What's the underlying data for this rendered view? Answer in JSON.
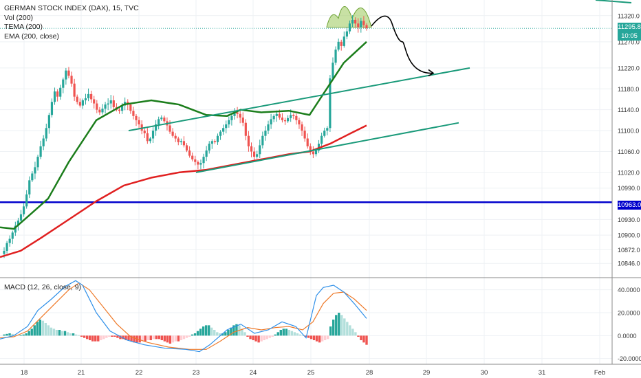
{
  "chart_data": {
    "type": "candlestick",
    "title": "GERMAN STOCK INDEX (DAX), 15, TVC",
    "indicators": [
      "Vol (200)",
      "TEMA (200)",
      "EMA (200, close)"
    ],
    "price_axis": {
      "ticks": [
        "11320.0",
        "11270.0",
        "11220.0",
        "11180.0",
        "11140.0",
        "11100.0",
        "11060.0",
        "11020.0",
        "10990.0",
        "10930.0",
        "10900.0",
        "10872.0",
        "10846.0"
      ],
      "range": [
        10820,
        11350
      ]
    },
    "current_price": "11295.8",
    "countdown": "10:05",
    "support_level": {
      "value": 10963.0,
      "label": "10963.0"
    },
    "x_axis_labels": [
      "18",
      "21",
      "22",
      "23",
      "24",
      "25",
      "28",
      "29",
      "30",
      "31",
      "Feb"
    ],
    "candles_close": [
      10870,
      10885,
      10893,
      10905,
      10918,
      10928,
      10940,
      10955,
      10978,
      11005,
      11018,
      11030,
      11050,
      11070,
      11085,
      11105,
      11130,
      11155,
      11175,
      11165,
      11182,
      11198,
      11215,
      11205,
      11190,
      11165,
      11155,
      11148,
      11158,
      11162,
      11170,
      11160,
      11152,
      11140,
      11135,
      11142,
      11150,
      11152,
      11158,
      11145,
      11140,
      11138,
      11148,
      11155,
      11150,
      11138,
      11128,
      11120,
      11112,
      11100,
      11095,
      11080,
      11085,
      11100,
      11112,
      11122,
      11125,
      11118,
      11110,
      11098,
      11090,
      11085,
      11078,
      11080,
      11072,
      11062,
      11052,
      11045,
      11040,
      11035,
      11038,
      11050,
      11062,
      11075,
      11080,
      11078,
      11090,
      11098,
      11105,
      11112,
      11120,
      11128,
      11135,
      11132,
      11125,
      11115,
      11090,
      11070,
      11060,
      11050,
      11055,
      11072,
      11090,
      11100,
      11112,
      11122,
      11128,
      11132,
      11125,
      11120,
      11118,
      11124,
      11130,
      11128,
      11120,
      11112,
      11100,
      11085,
      11070,
      11060,
      11055,
      11062,
      11075,
      11090,
      11100,
      11105,
      11200,
      11230,
      11255,
      11270,
      11262,
      11280,
      11290,
      11305,
      11312,
      11305,
      11298,
      11310,
      11302,
      11296
    ],
    "tema_200": [
      [
        0,
        10915
      ],
      [
        20,
        10912
      ],
      [
        40,
        10935
      ],
      [
        70,
        10970
      ],
      [
        100,
        11040
      ],
      [
        140,
        11120
      ],
      [
        180,
        11150
      ],
      [
        220,
        11158
      ],
      [
        260,
        11150
      ],
      [
        300,
        11130
      ],
      [
        330,
        11128
      ],
      [
        350,
        11140
      ],
      [
        380,
        11135
      ],
      [
        420,
        11138
      ],
      [
        450,
        11130
      ],
      [
        470,
        11170
      ],
      [
        500,
        11230
      ],
      [
        533,
        11270
      ]
    ],
    "ema_200": [
      [
        0,
        10858
      ],
      [
        30,
        10870
      ],
      [
        60,
        10895
      ],
      [
        100,
        10930
      ],
      [
        140,
        10965
      ],
      [
        180,
        10995
      ],
      [
        220,
        11010
      ],
      [
        260,
        11020
      ],
      [
        300,
        11025
      ],
      [
        340,
        11035
      ],
      [
        380,
        11045
      ],
      [
        420,
        11055
      ],
      [
        450,
        11060
      ],
      [
        480,
        11075
      ],
      [
        510,
        11095
      ],
      [
        533,
        11110
      ]
    ],
    "channel_upper": [
      [
        187,
        11100
      ],
      [
        683,
        11220
      ]
    ],
    "channel_lower": [
      [
        285,
        11020
      ],
      [
        667,
        11115
      ]
    ],
    "projection_path": [
      [
        540,
        11300
      ],
      [
        570,
        11305
      ],
      [
        585,
        11270
      ],
      [
        600,
        11220
      ],
      [
        630,
        11210
      ]
    ],
    "macd": {
      "label": "MACD (12, 26, close, 9)",
      "axis_ticks": [
        "40.0000",
        "20.0000",
        "0.0000",
        "-20.0000"
      ],
      "range": [
        -25,
        50
      ],
      "histogram": [
        1,
        1.5,
        2,
        1.5,
        1,
        0.5,
        0.5,
        1,
        2,
        4,
        6,
        9,
        12,
        14,
        13,
        11,
        9,
        7,
        6,
        5,
        5,
        4,
        4,
        3,
        2,
        2,
        1,
        0.5,
        -1,
        -2,
        -3,
        -4,
        -5,
        -5,
        -5,
        -4,
        -3,
        -2,
        -1,
        -1,
        -1,
        -2,
        -3,
        -3,
        -4,
        -4,
        -5,
        -6,
        -6,
        -6,
        -5,
        -5,
        -4,
        -4,
        -3,
        -3,
        -3,
        -4,
        -5,
        -6,
        -7,
        -6,
        -5,
        -5,
        -4,
        -3,
        -2,
        -1,
        1,
        2,
        4,
        6,
        8,
        9,
        9,
        7,
        5,
        3,
        2,
        2,
        3,
        5,
        7,
        9,
        10,
        9,
        6,
        3,
        -1,
        -3,
        -4,
        -5,
        -6,
        -5,
        -4,
        -3,
        -2,
        -1,
        1,
        3,
        5,
        6,
        6,
        5,
        4,
        3,
        2,
        1,
        0.5,
        -1,
        -2,
        -3,
        -4,
        -5,
        -6,
        -5,
        -4,
        -3,
        8,
        14,
        18,
        20,
        18,
        15,
        12,
        9,
        6,
        3,
        -1,
        -4,
        -6,
        -8
      ],
      "macd_line": [
        [
          0,
          -3
        ],
        [
          20,
          0
        ],
        [
          40,
          8
        ],
        [
          55,
          22
        ],
        [
          75,
          32
        ],
        [
          95,
          43
        ],
        [
          110,
          48
        ],
        [
          120,
          44
        ],
        [
          140,
          20
        ],
        [
          160,
          4
        ],
        [
          185,
          -4
        ],
        [
          210,
          -8
        ],
        [
          240,
          -11
        ],
        [
          270,
          -12
        ],
        [
          290,
          -14
        ],
        [
          305,
          -8
        ],
        [
          330,
          5
        ],
        [
          350,
          10
        ],
        [
          370,
          2
        ],
        [
          390,
          5
        ],
        [
          410,
          12
        ],
        [
          430,
          8
        ],
        [
          445,
          -2
        ],
        [
          460,
          35
        ],
        [
          470,
          42
        ],
        [
          485,
          44
        ],
        [
          500,
          38
        ],
        [
          515,
          28
        ],
        [
          533,
          15
        ]
      ],
      "signal_line": [
        [
          0,
          -2
        ],
        [
          20,
          -1
        ],
        [
          40,
          4
        ],
        [
          60,
          16
        ],
        [
          80,
          28
        ],
        [
          100,
          40
        ],
        [
          115,
          46
        ],
        [
          130,
          40
        ],
        [
          150,
          25
        ],
        [
          170,
          10
        ],
        [
          190,
          -1
        ],
        [
          215,
          -6
        ],
        [
          245,
          -10
        ],
        [
          275,
          -12
        ],
        [
          300,
          -12
        ],
        [
          320,
          -5
        ],
        [
          340,
          3
        ],
        [
          360,
          7
        ],
        [
          380,
          5
        ],
        [
          400,
          7
        ],
        [
          420,
          8
        ],
        [
          440,
          5
        ],
        [
          455,
          12
        ],
        [
          470,
          28
        ],
        [
          485,
          37
        ],
        [
          500,
          38
        ],
        [
          515,
          32
        ],
        [
          533,
          22
        ]
      ]
    },
    "colors": {
      "bull": "#26a69a",
      "bear": "#ef5350",
      "tema": "#1b7d1b",
      "ema": "#e02020",
      "channel": "#1a9a7a",
      "support": "#0000cc",
      "macd_line": "#2e8fe8",
      "signal_line": "#ee7a2a",
      "hist_pos_strong": "#26a69a",
      "hist_pos_weak": "#b2dfdb",
      "hist_neg_strong": "#ef5350",
      "hist_neg_weak": "#ffcdd2",
      "pattern_fill": "#9bc85a"
    }
  }
}
